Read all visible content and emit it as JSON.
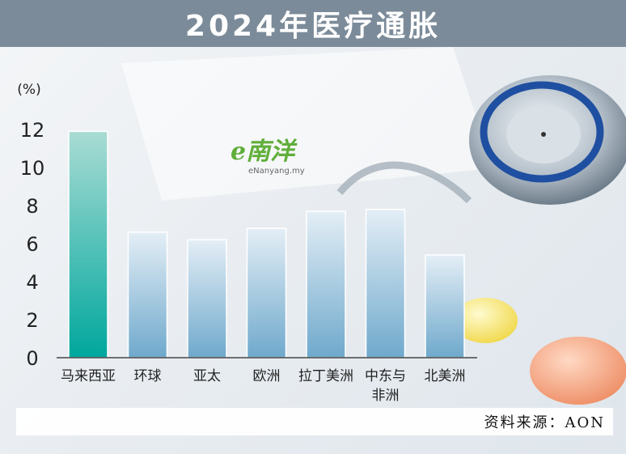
{
  "title": "2024年医疗通胀",
  "unit_label": "(%)",
  "watermark": {
    "logo": "e南洋",
    "sub": "eNanyang.my"
  },
  "source": "资料来源：AON",
  "colors": {
    "title_bg": "#7c8b99",
    "highlight_bar_top": "#a9dcd4",
    "highlight_bar_bottom": "#00a79d",
    "bar_top": "#e4eef6",
    "bar_bottom": "#6fa9cc"
  },
  "chart_data": {
    "type": "bar",
    "categories": [
      "马来西亚",
      "环球",
      "亚太",
      "欧洲",
      "拉丁美洲",
      "中东与非洲",
      "北美洲"
    ],
    "category_lines": [
      [
        "马来西亚"
      ],
      [
        "环球"
      ],
      [
        "亚太"
      ],
      [
        "欧洲"
      ],
      [
        "拉丁美洲"
      ],
      [
        "中东与",
        "非洲"
      ],
      [
        "北美洲"
      ]
    ],
    "values": [
      11.9,
      6.6,
      6.2,
      6.8,
      7.7,
      7.8,
      5.4
    ],
    "highlight": "马来西亚",
    "ylabel": "(%)",
    "ylim": [
      0,
      12
    ],
    "yticks": [
      0,
      2,
      4,
      6,
      8,
      10,
      12
    ],
    "grid": false,
    "legend": "none"
  }
}
